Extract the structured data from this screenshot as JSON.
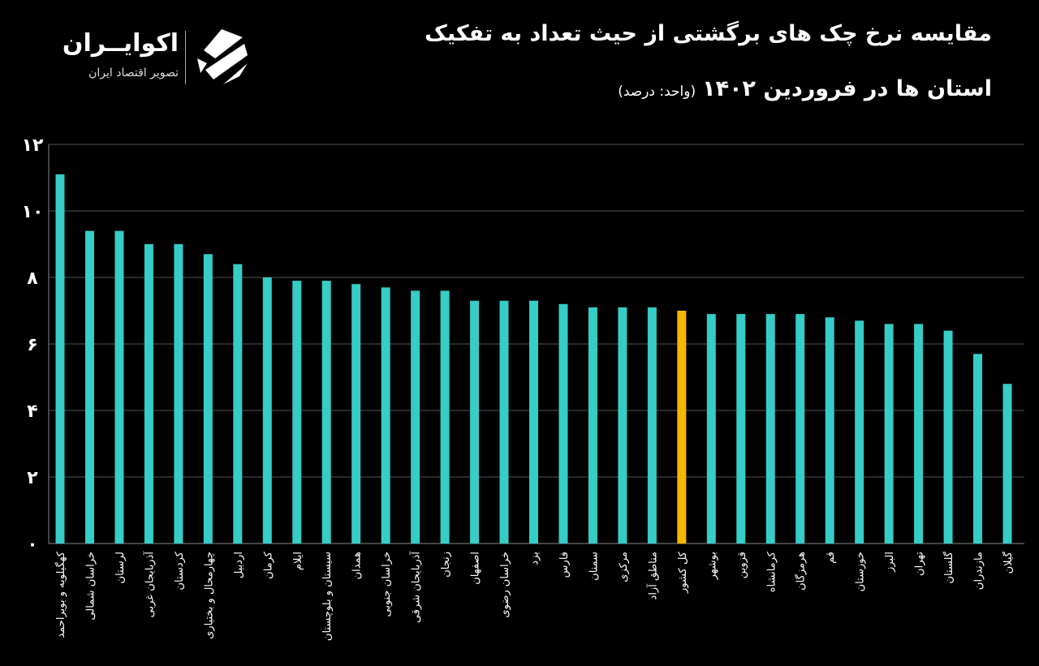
{
  "header": {
    "title_line1": "مقایسه نرخ چک های برگشتی از حیث تعداد به تفکیک",
    "title_line2": "استان ها در فروردین ۱۴۰۲",
    "unit": "(واحد: درصد)"
  },
  "logo": {
    "name": "اکوایــران",
    "tagline": "تصویر اقتصاد ایران"
  },
  "colors": {
    "bar": "#35cdc6",
    "highlight": "#f5b800",
    "axis": "#ffffff",
    "grid": "#555555"
  },
  "chart_data": {
    "type": "bar",
    "title": "مقایسه نرخ چک های برگشتی از حیث تعداد به تفکیک استان ها در فروردین ۱۴۰۲",
    "ylabel": "درصد",
    "ylim": [
      0,
      12
    ],
    "yticks": [
      0,
      2,
      4,
      6,
      8,
      10,
      12
    ],
    "ytick_labels": [
      "۰",
      "۲",
      "۴",
      "۶",
      "۸",
      "۱۰",
      "۱۲"
    ],
    "grid": true,
    "highlight_category": "کل کشور",
    "categories": [
      "کهگیلویه و بویراحمد",
      "خراسان شمالی",
      "لرستان",
      "آذربایجان غربی",
      "کردستان",
      "چهارمحال و بختیاری",
      "اردبیل",
      "کرمان",
      "ایلام",
      "سیستان و بلوچستان",
      "همدان",
      "خراسان جنوبی",
      "آذربایجان شرقی",
      "زنجان",
      "اصفهان",
      "خراسان رضوی",
      "یزد",
      "فارس",
      "سمنان",
      "مرکزی",
      "مناطق آزاد",
      "کل کشور",
      "بوشهر",
      "قزوین",
      "کرمانشاه",
      "هرمزگان",
      "قم",
      "خوزستان",
      "البرز",
      "تهران",
      "گلستان",
      "مازندران",
      "گیلان"
    ],
    "values": [
      11.1,
      9.4,
      9.4,
      9.0,
      9.0,
      8.7,
      8.4,
      8.0,
      7.9,
      7.9,
      7.8,
      7.7,
      7.6,
      7.6,
      7.3,
      7.3,
      7.3,
      7.2,
      7.1,
      7.1,
      7.1,
      7.0,
      6.9,
      6.9,
      6.9,
      6.9,
      6.8,
      6.7,
      6.6,
      6.6,
      6.4,
      5.7,
      4.8
    ]
  }
}
